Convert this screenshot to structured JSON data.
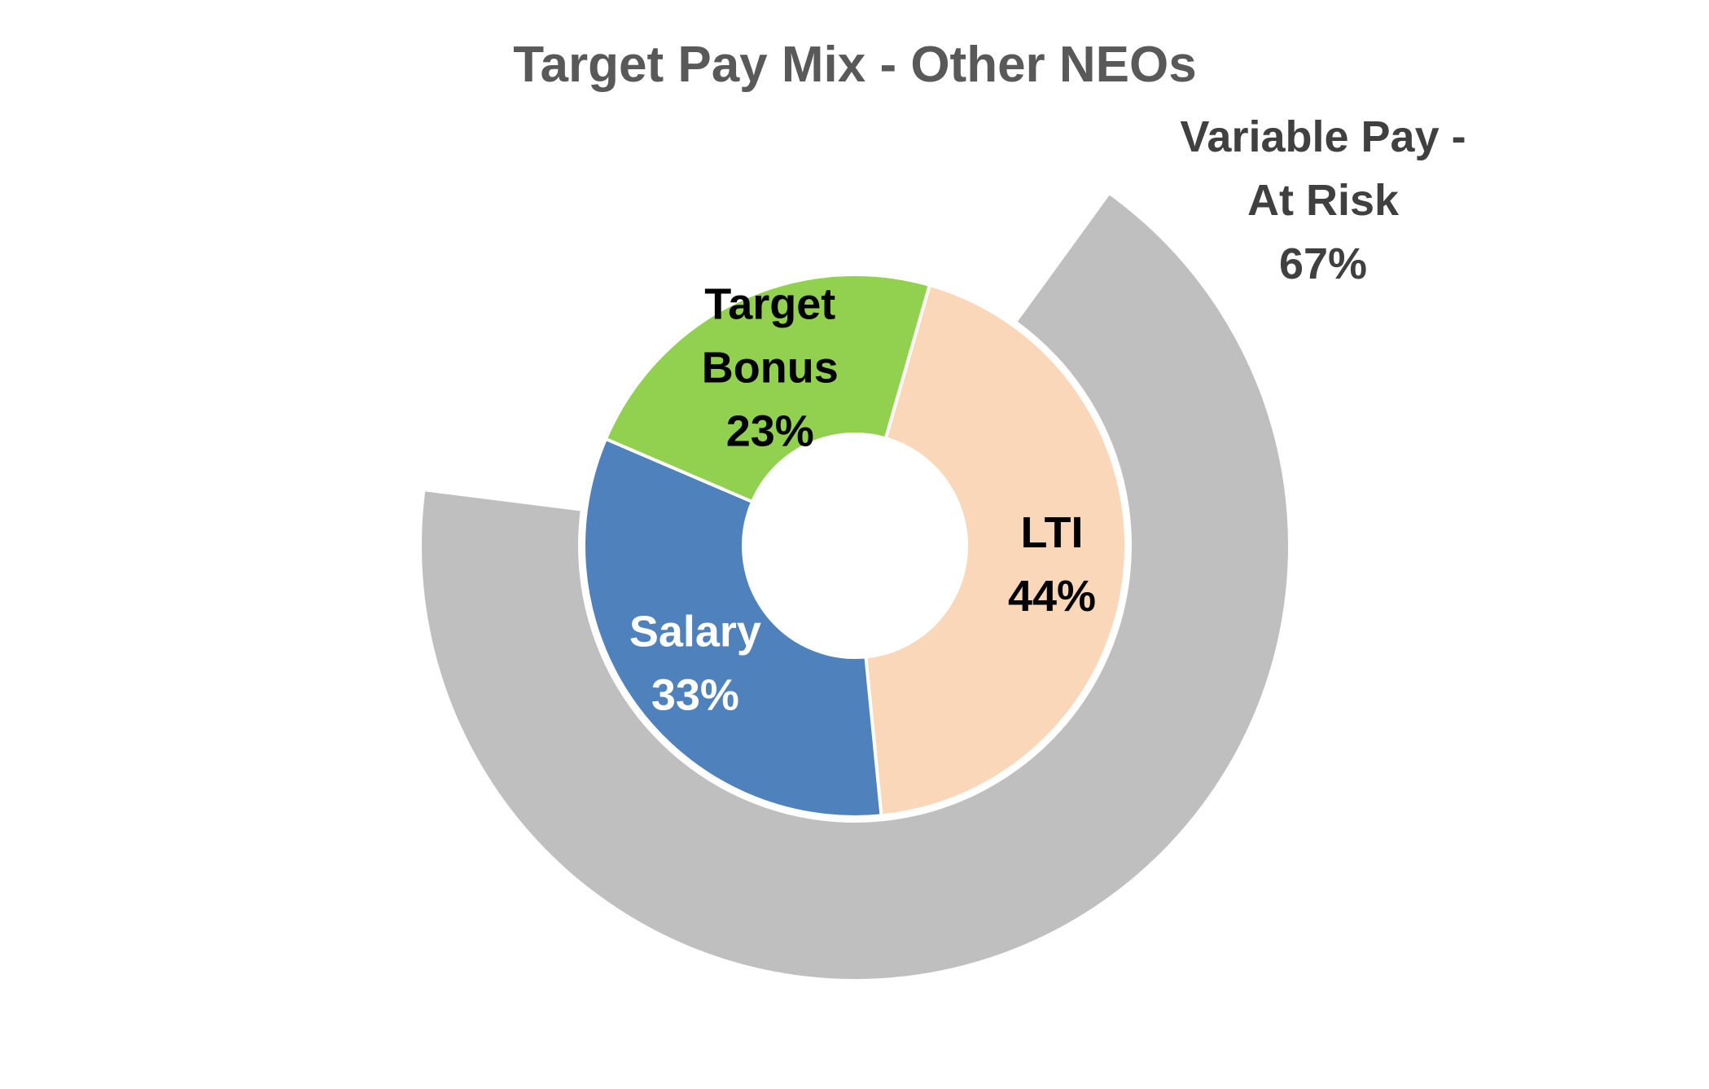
{
  "chart_data": {
    "type": "pie",
    "subtype": "nested-donut",
    "title": "Target Pay Mix - Other NEOs",
    "inner_ring": [
      {
        "name": "LTI",
        "value": 44,
        "value_label": "44%",
        "color": "#fad7b8",
        "label_color": "#000000"
      },
      {
        "name": "Salary",
        "value": 33,
        "value_label": "33%",
        "color": "#4f81bd",
        "label_color": "#ffffff"
      },
      {
        "name": "Target Bonus",
        "name_lines": [
          "Target",
          "Bonus"
        ],
        "value": 23,
        "value_label": "23%",
        "color": "#92d050",
        "label_color": "#000000"
      }
    ],
    "outer_ring": [
      {
        "name": "Variable Pay - At Risk",
        "name_lines": [
          "Variable Pay -",
          "At Risk"
        ],
        "value": 67,
        "value_label": "67%",
        "color": "#bfbfbf",
        "label_color": "#404040"
      }
    ],
    "title_color": "#595959",
    "legend": "none"
  }
}
